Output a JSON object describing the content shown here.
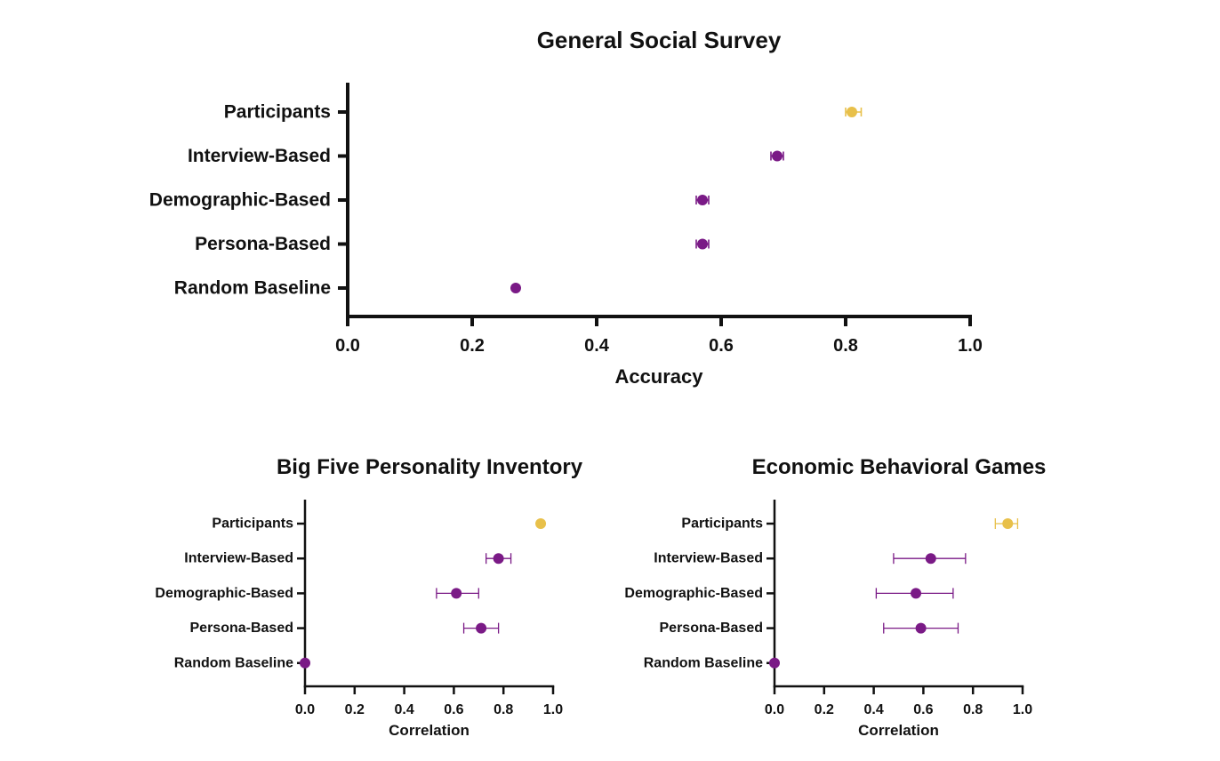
{
  "colors": {
    "model": "#7A1A86",
    "participants": "#E8C04A",
    "axis": "#111111"
  },
  "chart_data": [
    {
      "type": "scatter",
      "title": "General Social Survey",
      "xlabel": "Accuracy",
      "ylabel": "",
      "xlim": [
        0.0,
        1.0
      ],
      "xticks": [
        "0.0",
        "0.2",
        "0.4",
        "0.6",
        "0.8",
        "1.0"
      ],
      "categories": [
        "Participants",
        "Interview-Based",
        "Demographic-Based",
        "Persona-Based",
        "Random Baseline"
      ],
      "points": [
        {
          "category": "Participants",
          "value": 0.81,
          "err_low": 0.8,
          "err_high": 0.825,
          "group": "participants"
        },
        {
          "category": "Interview-Based",
          "value": 0.69,
          "err_low": 0.68,
          "err_high": 0.7,
          "group": "model"
        },
        {
          "category": "Demographic-Based",
          "value": 0.57,
          "err_low": 0.56,
          "err_high": 0.58,
          "group": "model"
        },
        {
          "category": "Persona-Based",
          "value": 0.57,
          "err_low": 0.56,
          "err_high": 0.58,
          "group": "model"
        },
        {
          "category": "Random Baseline",
          "value": 0.27,
          "err_low": 0.27,
          "err_high": 0.27,
          "group": "model"
        }
      ],
      "grid": false
    },
    {
      "type": "scatter",
      "title": "Big Five Personality Inventory",
      "xlabel": "Correlation",
      "ylabel": "",
      "xlim": [
        0.0,
        1.0
      ],
      "xticks": [
        "0.0",
        "0.2",
        "0.4",
        "0.6",
        "0.8",
        "1.0"
      ],
      "categories": [
        "Participants",
        "Interview-Based",
        "Demographic-Based",
        "Persona-Based",
        "Random Baseline"
      ],
      "points": [
        {
          "category": "Participants",
          "value": 0.95,
          "err_low": 0.95,
          "err_high": 0.95,
          "group": "participants"
        },
        {
          "category": "Interview-Based",
          "value": 0.78,
          "err_low": 0.73,
          "err_high": 0.83,
          "group": "model"
        },
        {
          "category": "Demographic-Based",
          "value": 0.61,
          "err_low": 0.53,
          "err_high": 0.7,
          "group": "model"
        },
        {
          "category": "Persona-Based",
          "value": 0.71,
          "err_low": 0.64,
          "err_high": 0.78,
          "group": "model"
        },
        {
          "category": "Random Baseline",
          "value": 0.0,
          "err_low": 0.0,
          "err_high": 0.0,
          "group": "model"
        }
      ],
      "grid": false
    },
    {
      "type": "scatter",
      "title": "Economic Behavioral Games",
      "xlabel": "Correlation",
      "ylabel": "",
      "xlim": [
        0.0,
        1.0
      ],
      "xticks": [
        "0.0",
        "0.2",
        "0.4",
        "0.6",
        "0.8",
        "1.0"
      ],
      "categories": [
        "Participants",
        "Interview-Based",
        "Demographic-Based",
        "Persona-Based",
        "Random Baseline"
      ],
      "points": [
        {
          "category": "Participants",
          "value": 0.94,
          "err_low": 0.89,
          "err_high": 0.98,
          "group": "participants"
        },
        {
          "category": "Interview-Based",
          "value": 0.63,
          "err_low": 0.48,
          "err_high": 0.77,
          "group": "model"
        },
        {
          "category": "Demographic-Based",
          "value": 0.57,
          "err_low": 0.41,
          "err_high": 0.72,
          "group": "model"
        },
        {
          "category": "Persona-Based",
          "value": 0.59,
          "err_low": 0.44,
          "err_high": 0.74,
          "group": "model"
        },
        {
          "category": "Random Baseline",
          "value": 0.0,
          "err_low": 0.0,
          "err_high": 0.0,
          "group": "model"
        }
      ],
      "grid": false
    }
  ]
}
